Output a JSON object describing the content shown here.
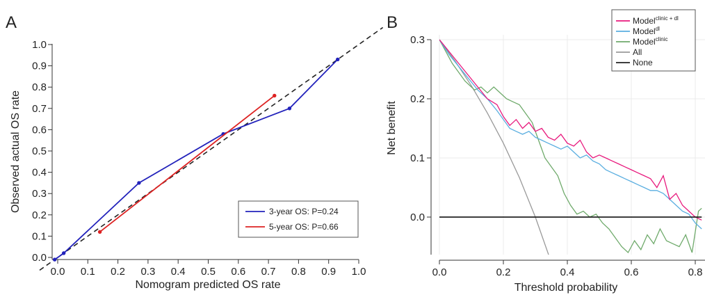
{
  "chart_data": [
    {
      "panel_label": "A",
      "type": "line",
      "xlabel": "Nomogram predicted OS rate",
      "ylabel": "Observed actual OS rate",
      "xlim": [
        -0.02,
        1.0
      ],
      "ylim": [
        -0.02,
        1.0
      ],
      "xticks": [
        "0.0",
        "0.1",
        "0.2",
        "0.3",
        "0.4",
        "0.5",
        "0.6",
        "0.7",
        "0.8",
        "0.9",
        "1.0"
      ],
      "yticks": [
        "0.0",
        "0.1",
        "0.2",
        "0.3",
        "0.4",
        "0.5",
        "0.6",
        "0.7",
        "0.8",
        "0.9",
        "1.0"
      ],
      "grid": false,
      "legend_position": "bottom-right",
      "reference_line": {
        "style": "dashed",
        "color": "#222222",
        "x": [
          -0.06,
          1.08
        ],
        "y": [
          -0.06,
          1.08
        ]
      },
      "series": [
        {
          "name": "3-year OS: P=0.24",
          "color": "#2222bb",
          "x": [
            -0.01,
            0.02,
            0.27,
            0.55,
            0.77,
            0.93
          ],
          "y": [
            -0.01,
            0.02,
            0.35,
            0.58,
            0.7,
            0.93
          ]
        },
        {
          "name": "5-year OS: P=0.66",
          "color": "#dd2222",
          "x": [
            0.14,
            0.72
          ],
          "y": [
            0.12,
            0.76
          ]
        }
      ]
    },
    {
      "panel_label": "B",
      "type": "line",
      "xlabel": "Threshold probability",
      "ylabel": "Net benefit",
      "xlim": [
        0.0,
        0.82
      ],
      "ylim": [
        -0.065,
        0.3
      ],
      "xticks": [
        "0.0",
        "0.2",
        "0.4",
        "0.6",
        "0.8"
      ],
      "yticks": [
        "0.0",
        "0.1",
        "0.2",
        "0.3"
      ],
      "grid": true,
      "legend_position": "top-right",
      "series": [
        {
          "name": "Model",
          "name_sup": "clinic + dl",
          "color": "#e8197d",
          "x": [
            0.0,
            0.03,
            0.06,
            0.09,
            0.12,
            0.15,
            0.18,
            0.2,
            0.22,
            0.24,
            0.26,
            0.28,
            0.3,
            0.32,
            0.34,
            0.36,
            0.38,
            0.4,
            0.42,
            0.44,
            0.46,
            0.48,
            0.5,
            0.52,
            0.54,
            0.56,
            0.58,
            0.6,
            0.62,
            0.64,
            0.66,
            0.68,
            0.7,
            0.72,
            0.74,
            0.76,
            0.78,
            0.8,
            0.82
          ],
          "y": [
            0.3,
            0.28,
            0.26,
            0.24,
            0.22,
            0.2,
            0.19,
            0.17,
            0.155,
            0.165,
            0.15,
            0.16,
            0.145,
            0.15,
            0.135,
            0.13,
            0.14,
            0.125,
            0.12,
            0.13,
            0.11,
            0.1,
            0.105,
            0.1,
            0.095,
            0.09,
            0.085,
            0.08,
            0.075,
            0.07,
            0.065,
            0.05,
            0.07,
            0.03,
            0.04,
            0.02,
            0.01,
            0.0,
            -0.005
          ]
        },
        {
          "name": "Model",
          "name_sup": "dl",
          "color": "#5aaee0",
          "x": [
            0.0,
            0.03,
            0.06,
            0.09,
            0.12,
            0.15,
            0.18,
            0.2,
            0.22,
            0.24,
            0.26,
            0.28,
            0.3,
            0.32,
            0.34,
            0.36,
            0.38,
            0.4,
            0.42,
            0.44,
            0.46,
            0.48,
            0.5,
            0.52,
            0.54,
            0.56,
            0.58,
            0.6,
            0.62,
            0.64,
            0.66,
            0.68,
            0.7,
            0.72,
            0.74,
            0.76,
            0.78,
            0.8,
            0.82
          ],
          "y": [
            0.3,
            0.275,
            0.255,
            0.235,
            0.215,
            0.2,
            0.18,
            0.165,
            0.15,
            0.145,
            0.14,
            0.145,
            0.135,
            0.13,
            0.125,
            0.12,
            0.115,
            0.12,
            0.11,
            0.1,
            0.105,
            0.095,
            0.09,
            0.08,
            0.075,
            0.07,
            0.065,
            0.06,
            0.055,
            0.05,
            0.045,
            0.045,
            0.04,
            0.03,
            0.02,
            0.01,
            0.005,
            -0.01,
            -0.02
          ]
        },
        {
          "name": "Model",
          "name_sup": "clinic",
          "color": "#6faa6b",
          "x": [
            0.0,
            0.04,
            0.08,
            0.11,
            0.13,
            0.15,
            0.17,
            0.19,
            0.21,
            0.23,
            0.25,
            0.27,
            0.29,
            0.31,
            0.33,
            0.35,
            0.37,
            0.39,
            0.41,
            0.43,
            0.45,
            0.47,
            0.49,
            0.51,
            0.53,
            0.55,
            0.57,
            0.59,
            0.61,
            0.63,
            0.65,
            0.67,
            0.69,
            0.71,
            0.73,
            0.75,
            0.77,
            0.79,
            0.81,
            0.82
          ],
          "y": [
            0.3,
            0.26,
            0.23,
            0.215,
            0.22,
            0.21,
            0.22,
            0.21,
            0.2,
            0.195,
            0.19,
            0.175,
            0.16,
            0.13,
            0.1,
            0.085,
            0.07,
            0.04,
            0.02,
            0.005,
            0.01,
            0.0,
            0.005,
            -0.01,
            -0.02,
            -0.035,
            -0.05,
            -0.06,
            -0.04,
            -0.055,
            -0.03,
            -0.045,
            -0.02,
            -0.04,
            -0.045,
            -0.05,
            -0.03,
            -0.06,
            0.01,
            0.015
          ]
        },
        {
          "name": "All",
          "color": "#999999",
          "x": [
            0.0,
            0.05,
            0.1,
            0.15,
            0.2,
            0.25,
            0.3,
            0.35
          ],
          "y": [
            0.3,
            0.263,
            0.222,
            0.176,
            0.125,
            0.067,
            0.0,
            -0.077
          ]
        },
        {
          "name": "None",
          "color": "#222222",
          "x": [
            0.0,
            0.82
          ],
          "y": [
            0.0,
            0.0
          ]
        }
      ]
    }
  ]
}
